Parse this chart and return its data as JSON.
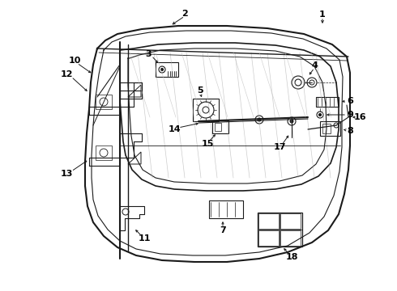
{
  "bg_color": "#ffffff",
  "line_color": "#1a1a1a",
  "label_color": "#000000",
  "fig_w": 4.9,
  "fig_h": 3.6,
  "dpi": 100
}
